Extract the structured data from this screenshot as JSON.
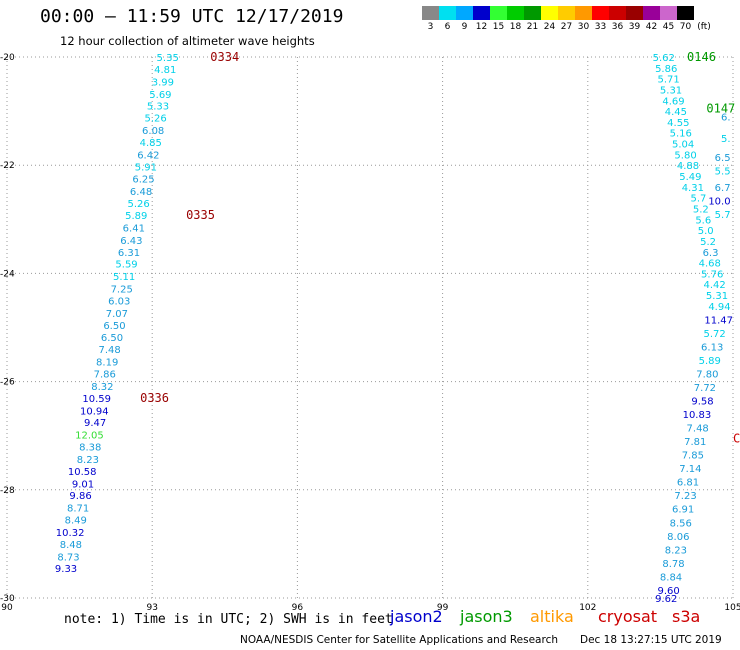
{
  "title": "00:00 – 11:59 UTC 12/17/2019",
  "subtitle": "12 hour collection of altimeter wave heights",
  "legend": {
    "unit": "(ft)",
    "bins": [
      {
        "label": "3",
        "color": "#888888"
      },
      {
        "label": "6",
        "color": "#00e0f0"
      },
      {
        "label": "9",
        "color": "#00a8ff"
      },
      {
        "label": "12",
        "color": "#0000cc"
      },
      {
        "label": "15",
        "color": "#33ff33"
      },
      {
        "label": "18",
        "color": "#00cc00"
      },
      {
        "label": "21",
        "color": "#009900"
      },
      {
        "label": "24",
        "color": "#ffff00"
      },
      {
        "label": "27",
        "color": "#ffcc00"
      },
      {
        "label": "30",
        "color": "#ff9900"
      },
      {
        "label": "33",
        "color": "#ff0000"
      },
      {
        "label": "36",
        "color": "#cc0000"
      },
      {
        "label": "39",
        "color": "#990000"
      },
      {
        "label": "42",
        "color": "#990099"
      },
      {
        "label": "45",
        "color": "#cc66cc"
      },
      {
        "label": "70",
        "color": "#000000"
      }
    ]
  },
  "note": "note: 1) Time is in UTC; 2) SWH is in feet",
  "satellites": [
    {
      "name": "jason2",
      "color": "#0000cc"
    },
    {
      "name": "jason3",
      "color": "#009900"
    },
    {
      "name": "altika",
      "color": "#ff9900"
    },
    {
      "name": "cryosat",
      "color": "#cc0000"
    },
    {
      "name": "s3a",
      "color": "#cc0000"
    }
  ],
  "footer": "NOAA/NESDIS Center for Satellite Applications and Research",
  "footer_date": "Dec 18 13:27:15 UTC 2019",
  "chart_data": {
    "type": "scatter",
    "xlim": [
      90,
      105
    ],
    "ylim": [
      -30,
      -20
    ],
    "xticks": [
      "90",
      "93",
      "96",
      "99",
      "102",
      "105"
    ],
    "yticks": [
      "-20",
      "-22",
      "-24",
      "-26",
      "-28",
      "-30"
    ],
    "grid": true,
    "series": [
      {
        "points": [
          {
            "x": 93.55,
            "y": -20.0,
            "label": "5.35"
          },
          {
            "x": 93.5,
            "y": -20.22,
            "label": "4.81"
          },
          {
            "x": 93.45,
            "y": -20.45,
            "label": "3.99"
          },
          {
            "x": 93.4,
            "y": -20.68,
            "label": "5.69"
          },
          {
            "x": 93.35,
            "y": -20.9,
            "label": "5.33"
          },
          {
            "x": 93.3,
            "y": -21.12,
            "label": "5.26"
          },
          {
            "x": 93.25,
            "y": -21.35,
            "label": "6.08"
          },
          {
            "x": 93.2,
            "y": -21.57,
            "label": "4.85"
          },
          {
            "x": 93.15,
            "y": -21.8,
            "label": "6.42"
          },
          {
            "x": 93.1,
            "y": -22.02,
            "label": "5.91"
          },
          {
            "x": 93.05,
            "y": -22.25,
            "label": "6.25"
          },
          {
            "x": 93.0,
            "y": -22.48,
            "label": "6.48"
          },
          {
            "x": 92.95,
            "y": -22.7,
            "label": "5.26"
          },
          {
            "x": 92.9,
            "y": -22.92,
            "label": "5.89"
          },
          {
            "x": 92.85,
            "y": -23.15,
            "label": "6.41"
          },
          {
            "x": 92.8,
            "y": -23.38,
            "label": "6.43"
          },
          {
            "x": 92.75,
            "y": -23.6,
            "label": "6.31"
          },
          {
            "x": 92.7,
            "y": -23.82,
            "label": "5.59"
          },
          {
            "x": 92.65,
            "y": -24.05,
            "label": "5.11"
          },
          {
            "x": 92.6,
            "y": -24.28,
            "label": "7.25"
          },
          {
            "x": 92.55,
            "y": -24.5,
            "label": "6.03"
          },
          {
            "x": 92.5,
            "y": -24.73,
            "label": "7.07"
          },
          {
            "x": 92.45,
            "y": -24.95,
            "label": "6.50"
          },
          {
            "x": 92.4,
            "y": -25.18,
            "label": "6.50"
          },
          {
            "x": 92.35,
            "y": -25.4,
            "label": "7.48"
          },
          {
            "x": 92.3,
            "y": -25.63,
            "label": "8.19"
          },
          {
            "x": 92.25,
            "y": -25.85,
            "label": "7.86"
          },
          {
            "x": 92.2,
            "y": -26.08,
            "label": "8.32"
          },
          {
            "x": 92.15,
            "y": -26.3,
            "label": "10.59"
          },
          {
            "x": 92.1,
            "y": -26.53,
            "label": "10.94"
          },
          {
            "x": 92.05,
            "y": -26.75,
            "label": "9.47"
          },
          {
            "x": 92.0,
            "y": -26.98,
            "label": "12.05"
          },
          {
            "x": 91.95,
            "y": -27.2,
            "label": "8.38"
          },
          {
            "x": 91.9,
            "y": -27.43,
            "label": "8.23"
          },
          {
            "x": 91.85,
            "y": -27.65,
            "label": "10.58"
          },
          {
            "x": 91.8,
            "y": -27.88,
            "label": "9.01"
          },
          {
            "x": 91.75,
            "y": -28.1,
            "label": "9.86"
          },
          {
            "x": 91.7,
            "y": -28.33,
            "label": "8.71"
          },
          {
            "x": 91.65,
            "y": -28.55,
            "label": "8.49"
          },
          {
            "x": 91.6,
            "y": -28.78,
            "label": "10.32"
          },
          {
            "x": 91.55,
            "y": -29.0,
            "label": "8.48"
          },
          {
            "x": 91.5,
            "y": -29.23,
            "label": "8.73"
          },
          {
            "x": 91.45,
            "y": -29.45,
            "label": "9.33"
          }
        ]
      },
      {
        "points": [
          {
            "x": 103.8,
            "y": -20.0,
            "label": "5.62"
          },
          {
            "x": 103.85,
            "y": -20.2,
            "label": "5.86"
          },
          {
            "x": 103.9,
            "y": -20.4,
            "label": "5.71"
          },
          {
            "x": 103.95,
            "y": -20.6,
            "label": "5.31"
          },
          {
            "x": 104.0,
            "y": -20.8,
            "label": "4.69"
          },
          {
            "x": 104.05,
            "y": -21.0,
            "label": "4.45"
          },
          {
            "x": 104.1,
            "y": -21.2,
            "label": "4.55"
          },
          {
            "x": 104.15,
            "y": -21.4,
            "label": "5.16"
          },
          {
            "x": 104.2,
            "y": -21.6,
            "label": "5.04"
          },
          {
            "x": 104.25,
            "y": -21.8,
            "label": "5.80"
          },
          {
            "x": 104.3,
            "y": -22.0,
            "label": "4.88"
          },
          {
            "x": 104.35,
            "y": -22.2,
            "label": "5.49"
          },
          {
            "x": 104.4,
            "y": -22.4,
            "label": "4.31"
          },
          {
            "x": 104.45,
            "y": -22.6,
            "label": "5.7"
          },
          {
            "x": 104.5,
            "y": -22.8,
            "label": "5.2"
          },
          {
            "x": 104.55,
            "y": -23.0,
            "label": "5.6"
          },
          {
            "x": 104.6,
            "y": -23.2,
            "label": "5.0"
          },
          {
            "x": 104.65,
            "y": -23.4,
            "label": "5.2"
          },
          {
            "x": 104.7,
            "y": -23.6,
            "label": "6.3"
          },
          {
            "x": 104.75,
            "y": -23.8,
            "label": "4.68"
          },
          {
            "x": 104.8,
            "y": -24.0,
            "label": "5.76"
          },
          {
            "x": 104.85,
            "y": -24.2,
            "label": "4.42"
          },
          {
            "x": 104.9,
            "y": -24.4,
            "label": "5.31"
          },
          {
            "x": 104.95,
            "y": -24.6,
            "label": "4.94"
          },
          {
            "x": 105.0,
            "y": -24.85,
            "label": "11.47"
          }
        ]
      },
      {
        "points": [
          {
            "x": 104.85,
            "y": -25.1,
            "label": "5.72"
          },
          {
            "x": 104.8,
            "y": -25.35,
            "label": "6.13"
          },
          {
            "x": 104.75,
            "y": -25.6,
            "label": "5.89"
          },
          {
            "x": 104.7,
            "y": -25.85,
            "label": "7.80"
          },
          {
            "x": 104.65,
            "y": -26.1,
            "label": "7.72"
          },
          {
            "x": 104.6,
            "y": -26.35,
            "label": "9.58"
          },
          {
            "x": 104.55,
            "y": -26.6,
            "label": "10.83"
          },
          {
            "x": 104.5,
            "y": -26.85,
            "label": "7.48"
          },
          {
            "x": 104.45,
            "y": -27.1,
            "label": "7.81"
          },
          {
            "x": 104.4,
            "y": -27.35,
            "label": "7.85"
          },
          {
            "x": 104.35,
            "y": -27.6,
            "label": "7.14"
          },
          {
            "x": 104.3,
            "y": -27.85,
            "label": "6.81"
          },
          {
            "x": 104.25,
            "y": -28.1,
            "label": "7.23"
          },
          {
            "x": 104.2,
            "y": -28.35,
            "label": "6.91"
          },
          {
            "x": 104.15,
            "y": -28.6,
            "label": "8.56"
          },
          {
            "x": 104.1,
            "y": -28.85,
            "label": "8.06"
          },
          {
            "x": 104.05,
            "y": -29.1,
            "label": "8.23"
          },
          {
            "x": 104.0,
            "y": -29.35,
            "label": "8.78"
          },
          {
            "x": 103.95,
            "y": -29.6,
            "label": "8.84"
          },
          {
            "x": 103.9,
            "y": -29.85,
            "label": "9.60"
          },
          {
            "x": 103.85,
            "y": -30.0,
            "label": "9.62"
          }
        ]
      },
      {
        "points": [
          {
            "x": 104.95,
            "y": -21.1,
            "label": "6."
          },
          {
            "x": 104.95,
            "y": -21.5,
            "label": "5."
          },
          {
            "x": 104.95,
            "y": -21.85,
            "label": "6.5"
          },
          {
            "x": 104.95,
            "y": -22.1,
            "label": "5.5"
          },
          {
            "x": 104.95,
            "y": -22.4,
            "label": "6.7"
          },
          {
            "x": 104.95,
            "y": -22.65,
            "label": "10.0"
          },
          {
            "x": 104.95,
            "y": -22.9,
            "label": "5.7"
          }
        ]
      }
    ],
    "annotations": [
      {
        "x": 94.2,
        "y": -20.0,
        "label": "0334",
        "color": "#990000"
      },
      {
        "x": 93.7,
        "y": -22.92,
        "label": "0335",
        "color": "#990000"
      },
      {
        "x": 92.75,
        "y": -26.3,
        "label": "0336",
        "color": "#990000"
      },
      {
        "x": 104.05,
        "y": -20.0,
        "label": "0146",
        "color": "#009900"
      },
      {
        "x": 104.45,
        "y": -20.95,
        "label": "0147",
        "color": "#009900"
      },
      {
        "x": 105.0,
        "y": -27.05,
        "label": "C",
        "color": "#cc0000"
      }
    ]
  }
}
